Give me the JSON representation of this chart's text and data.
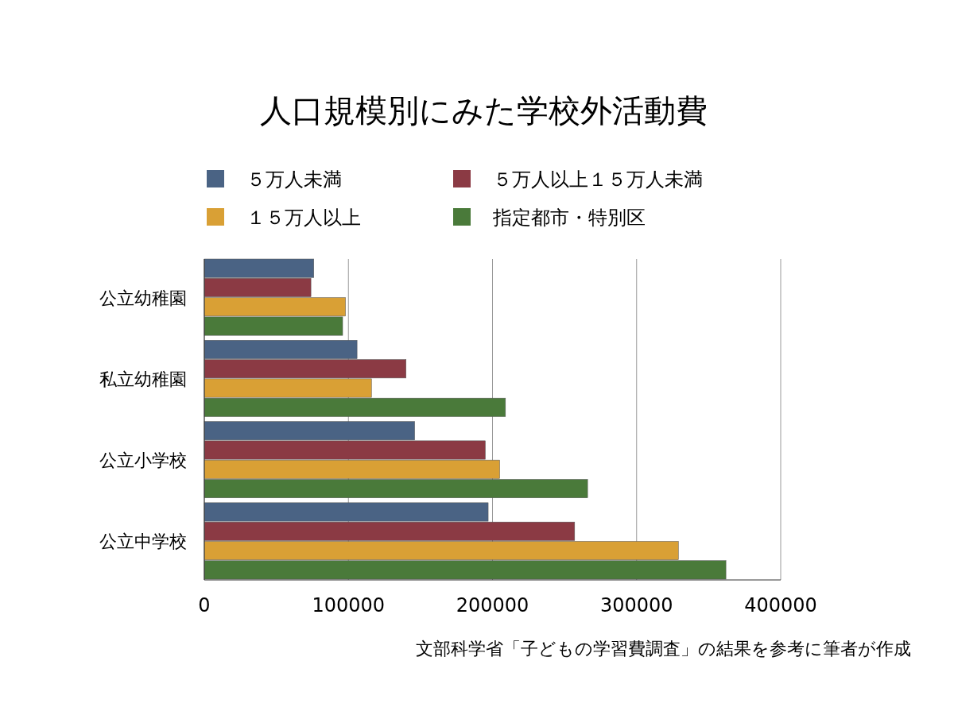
{
  "chart_data": {
    "type": "bar",
    "orientation": "horizontal",
    "title": "人口規模別にみた学校外活動費",
    "categories": [
      "公立幼稚園",
      "私立幼稚園",
      "公立小学校",
      "公立中学校"
    ],
    "series": [
      {
        "name": "５万人未満",
        "color": "#4a6384",
        "values": [
          76000,
          106000,
          146000,
          197000
        ]
      },
      {
        "name": "５万人以上１５万人未満",
        "color": "#8b3a44",
        "values": [
          74000,
          140000,
          195000,
          257000
        ]
      },
      {
        "name": "１５万人以上",
        "color": "#d9a035",
        "values": [
          98000,
          116000,
          205000,
          329000
        ]
      },
      {
        "name": "指定都市・特別区",
        "color": "#4a7a3a",
        "values": [
          96000,
          209000,
          266000,
          362000
        ]
      }
    ],
    "xlim": [
      0,
      400000
    ],
    "xticks": [
      0,
      100000,
      200000,
      300000,
      400000
    ],
    "grid": "x",
    "legend": "top",
    "annotations": [
      "文部科学省「子どもの学習費調査」の結果を参考に筆者が作成"
    ]
  }
}
